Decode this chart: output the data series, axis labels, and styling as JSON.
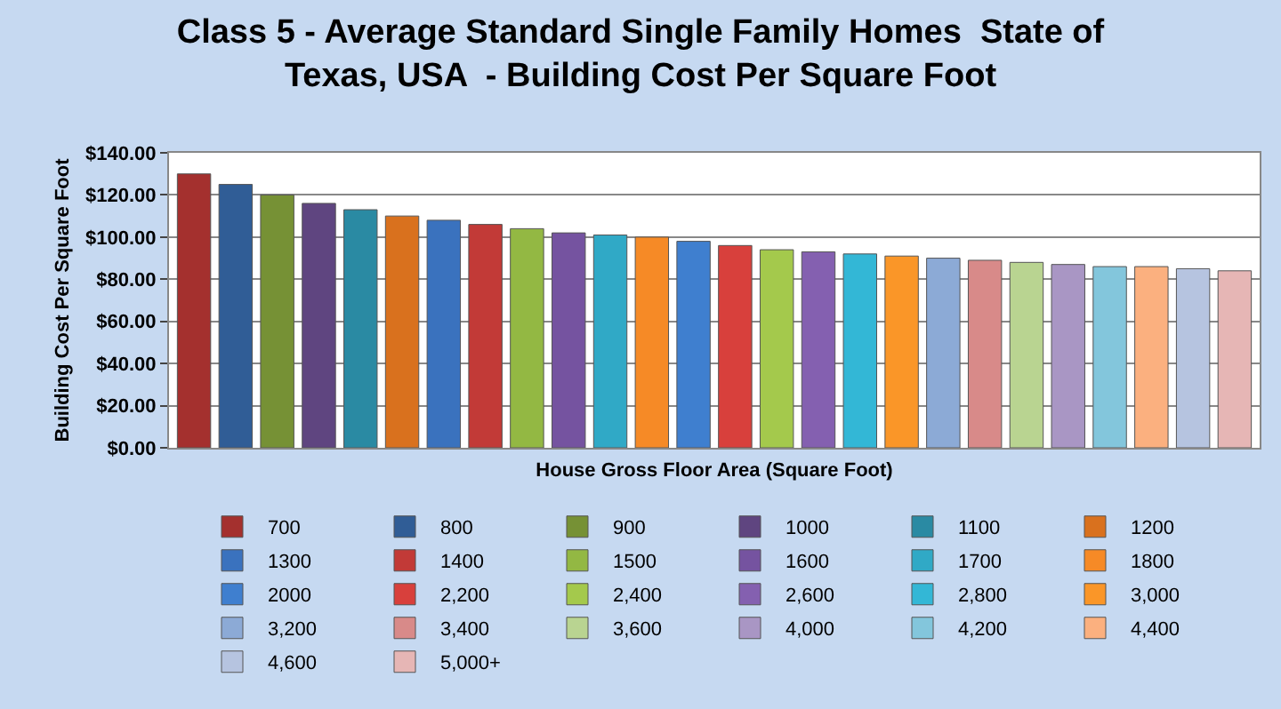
{
  "chart_data": {
    "type": "bar",
    "title": "Class 5 - Average Standard Single Family Homes  State of Texas, USA  - Building Cost Per Square Foot",
    "xlabel": "House Gross Floor Area (Square Foot)",
    "ylabel": "Building Cost Per Square Foot",
    "categories": [
      null,
      null,
      null,
      null,
      null,
      null,
      null,
      null,
      null,
      null,
      null,
      null,
      null,
      null,
      null,
      null,
      null,
      null,
      null,
      null,
      null,
      null,
      null,
      null,
      null,
      null
    ],
    "series": [
      {
        "name": "700",
        "color": "#a4302e",
        "values": [
          130,
          null,
          null,
          null,
          null,
          null,
          null,
          null,
          null,
          null,
          null,
          null,
          null,
          null,
          null,
          null,
          null,
          null,
          null,
          null,
          null,
          null,
          null,
          null,
          null,
          null
        ]
      },
      {
        "name": "800",
        "color": "#305d96",
        "values": [
          null,
          125,
          null,
          null,
          null,
          null,
          null,
          null,
          null,
          null,
          null,
          null,
          null,
          null,
          null,
          null,
          null,
          null,
          null,
          null,
          null,
          null,
          null,
          null,
          null,
          null
        ]
      },
      {
        "name": "900",
        "color": "#769135",
        "values": [
          null,
          null,
          120,
          null,
          null,
          null,
          null,
          null,
          null,
          null,
          null,
          null,
          null,
          null,
          null,
          null,
          null,
          null,
          null,
          null,
          null,
          null,
          null,
          null,
          null,
          null
        ]
      },
      {
        "name": "1000",
        "color": "#5f4580",
        "values": [
          null,
          null,
          null,
          116,
          null,
          null,
          null,
          null,
          null,
          null,
          null,
          null,
          null,
          null,
          null,
          null,
          null,
          null,
          null,
          null,
          null,
          null,
          null,
          null,
          null,
          null
        ]
      },
      {
        "name": "1100",
        "color": "#2a8aa3",
        "values": [
          null,
          null,
          null,
          null,
          113,
          null,
          null,
          null,
          null,
          null,
          null,
          null,
          null,
          null,
          null,
          null,
          null,
          null,
          null,
          null,
          null,
          null,
          null,
          null,
          null,
          null
        ]
      },
      {
        "name": "1200",
        "color": "#d9711e",
        "values": [
          null,
          null,
          null,
          null,
          null,
          110,
          null,
          null,
          null,
          null,
          null,
          null,
          null,
          null,
          null,
          null,
          null,
          null,
          null,
          null,
          null,
          null,
          null,
          null,
          null,
          null
        ]
      },
      {
        "name": "1300",
        "color": "#3a72be",
        "values": [
          null,
          null,
          null,
          null,
          null,
          null,
          108,
          null,
          null,
          null,
          null,
          null,
          null,
          null,
          null,
          null,
          null,
          null,
          null,
          null,
          null,
          null,
          null,
          null,
          null,
          null
        ]
      },
      {
        "name": "1400",
        "color": "#c23a37",
        "values": [
          null,
          null,
          null,
          null,
          null,
          null,
          null,
          106,
          null,
          null,
          null,
          null,
          null,
          null,
          null,
          null,
          null,
          null,
          null,
          null,
          null,
          null,
          null,
          null,
          null,
          null
        ]
      },
      {
        "name": "1500",
        "color": "#93b843",
        "values": [
          null,
          null,
          null,
          null,
          null,
          null,
          null,
          null,
          104,
          null,
          null,
          null,
          null,
          null,
          null,
          null,
          null,
          null,
          null,
          null,
          null,
          null,
          null,
          null,
          null,
          null
        ]
      },
      {
        "name": "1600",
        "color": "#7553a0",
        "values": [
          null,
          null,
          null,
          null,
          null,
          null,
          null,
          null,
          null,
          102,
          null,
          null,
          null,
          null,
          null,
          null,
          null,
          null,
          null,
          null,
          null,
          null,
          null,
          null,
          null,
          null
        ]
      },
      {
        "name": "1700",
        "color": "#30a9c6",
        "values": [
          null,
          null,
          null,
          null,
          null,
          null,
          null,
          null,
          null,
          null,
          101,
          null,
          null,
          null,
          null,
          null,
          null,
          null,
          null,
          null,
          null,
          null,
          null,
          null,
          null,
          null
        ]
      },
      {
        "name": "1800",
        "color": "#f68a26",
        "values": [
          null,
          null,
          null,
          null,
          null,
          null,
          null,
          null,
          null,
          null,
          null,
          100,
          null,
          null,
          null,
          null,
          null,
          null,
          null,
          null,
          null,
          null,
          null,
          null,
          null,
          null
        ]
      },
      {
        "name": "2000",
        "color": "#3f7fcf",
        "values": [
          null,
          null,
          null,
          null,
          null,
          null,
          null,
          null,
          null,
          null,
          null,
          null,
          98,
          null,
          null,
          null,
          null,
          null,
          null,
          null,
          null,
          null,
          null,
          null,
          null,
          null
        ]
      },
      {
        "name": "2,200",
        "color": "#d8403c",
        "values": [
          null,
          null,
          null,
          null,
          null,
          null,
          null,
          null,
          null,
          null,
          null,
          null,
          null,
          96,
          null,
          null,
          null,
          null,
          null,
          null,
          null,
          null,
          null,
          null,
          null,
          null
        ]
      },
      {
        "name": "2,400",
        "color": "#a4c94c",
        "values": [
          null,
          null,
          null,
          null,
          null,
          null,
          null,
          null,
          null,
          null,
          null,
          null,
          null,
          null,
          94,
          null,
          null,
          null,
          null,
          null,
          null,
          null,
          null,
          null,
          null,
          null
        ]
      },
      {
        "name": "2,600",
        "color": "#8460b0",
        "values": [
          null,
          null,
          null,
          null,
          null,
          null,
          null,
          null,
          null,
          null,
          null,
          null,
          null,
          null,
          null,
          93,
          null,
          null,
          null,
          null,
          null,
          null,
          null,
          null,
          null,
          null
        ]
      },
      {
        "name": "2,800",
        "color": "#33b7d6",
        "values": [
          null,
          null,
          null,
          null,
          null,
          null,
          null,
          null,
          null,
          null,
          null,
          null,
          null,
          null,
          null,
          null,
          92,
          null,
          null,
          null,
          null,
          null,
          null,
          null,
          null,
          null
        ]
      },
      {
        "name": "3,000",
        "color": "#fa9628",
        "values": [
          null,
          null,
          null,
          null,
          null,
          null,
          null,
          null,
          null,
          null,
          null,
          null,
          null,
          null,
          null,
          null,
          null,
          91,
          null,
          null,
          null,
          null,
          null,
          null,
          null,
          null
        ]
      },
      {
        "name": "3,200",
        "color": "#8caad6",
        "values": [
          null,
          null,
          null,
          null,
          null,
          null,
          null,
          null,
          null,
          null,
          null,
          null,
          null,
          null,
          null,
          null,
          null,
          null,
          90,
          null,
          null,
          null,
          null,
          null,
          null,
          null
        ]
      },
      {
        "name": "3,400",
        "color": "#d88a89",
        "values": [
          null,
          null,
          null,
          null,
          null,
          null,
          null,
          null,
          null,
          null,
          null,
          null,
          null,
          null,
          null,
          null,
          null,
          null,
          null,
          89,
          null,
          null,
          null,
          null,
          null,
          null
        ]
      },
      {
        "name": "3,600",
        "color": "#b9d491",
        "values": [
          null,
          null,
          null,
          null,
          null,
          null,
          null,
          null,
          null,
          null,
          null,
          null,
          null,
          null,
          null,
          null,
          null,
          null,
          null,
          null,
          88,
          null,
          null,
          null,
          null,
          null
        ]
      },
      {
        "name": "4,000",
        "color": "#a996c4",
        "values": [
          null,
          null,
          null,
          null,
          null,
          null,
          null,
          null,
          null,
          null,
          null,
          null,
          null,
          null,
          null,
          null,
          null,
          null,
          null,
          null,
          null,
          87,
          null,
          null,
          null,
          null
        ]
      },
      {
        "name": "4,200",
        "color": "#83c6dc",
        "values": [
          null,
          null,
          null,
          null,
          null,
          null,
          null,
          null,
          null,
          null,
          null,
          null,
          null,
          null,
          null,
          null,
          null,
          null,
          null,
          null,
          null,
          null,
          86,
          null,
          null,
          null
        ]
      },
      {
        "name": "4,400",
        "color": "#fbb07f",
        "values": [
          null,
          null,
          null,
          null,
          null,
          null,
          null,
          null,
          null,
          null,
          null,
          null,
          null,
          null,
          null,
          null,
          null,
          null,
          null,
          null,
          null,
          null,
          null,
          86,
          null,
          null
        ]
      },
      {
        "name": "4,600",
        "color": "#b6c4e0",
        "values": [
          null,
          null,
          null,
          null,
          null,
          null,
          null,
          null,
          null,
          null,
          null,
          null,
          null,
          null,
          null,
          null,
          null,
          null,
          null,
          null,
          null,
          null,
          null,
          null,
          85,
          null
        ]
      },
      {
        "name": "5,000+",
        "color": "#e6b6b5",
        "values": [
          null,
          null,
          null,
          null,
          null,
          null,
          null,
          null,
          null,
          null,
          null,
          null,
          null,
          null,
          null,
          null,
          null,
          null,
          null,
          null,
          null,
          null,
          null,
          null,
          null,
          84
        ]
      }
    ],
    "ylim": [
      0,
      140
    ],
    "yticks": [
      {
        "value": 0,
        "label": "$0.00"
      },
      {
        "value": 20,
        "label": "$20.00"
      },
      {
        "value": 40,
        "label": "$40.00"
      },
      {
        "value": 60,
        "label": "$60.00"
      },
      {
        "value": 80,
        "label": "$80.00"
      },
      {
        "value": 100,
        "label": "$100.00"
      },
      {
        "value": 120,
        "label": "$120.00"
      },
      {
        "value": 140,
        "label": "$140.00"
      }
    ],
    "grid": "y",
    "legend": "bottom",
    "tick_labels": "y"
  }
}
